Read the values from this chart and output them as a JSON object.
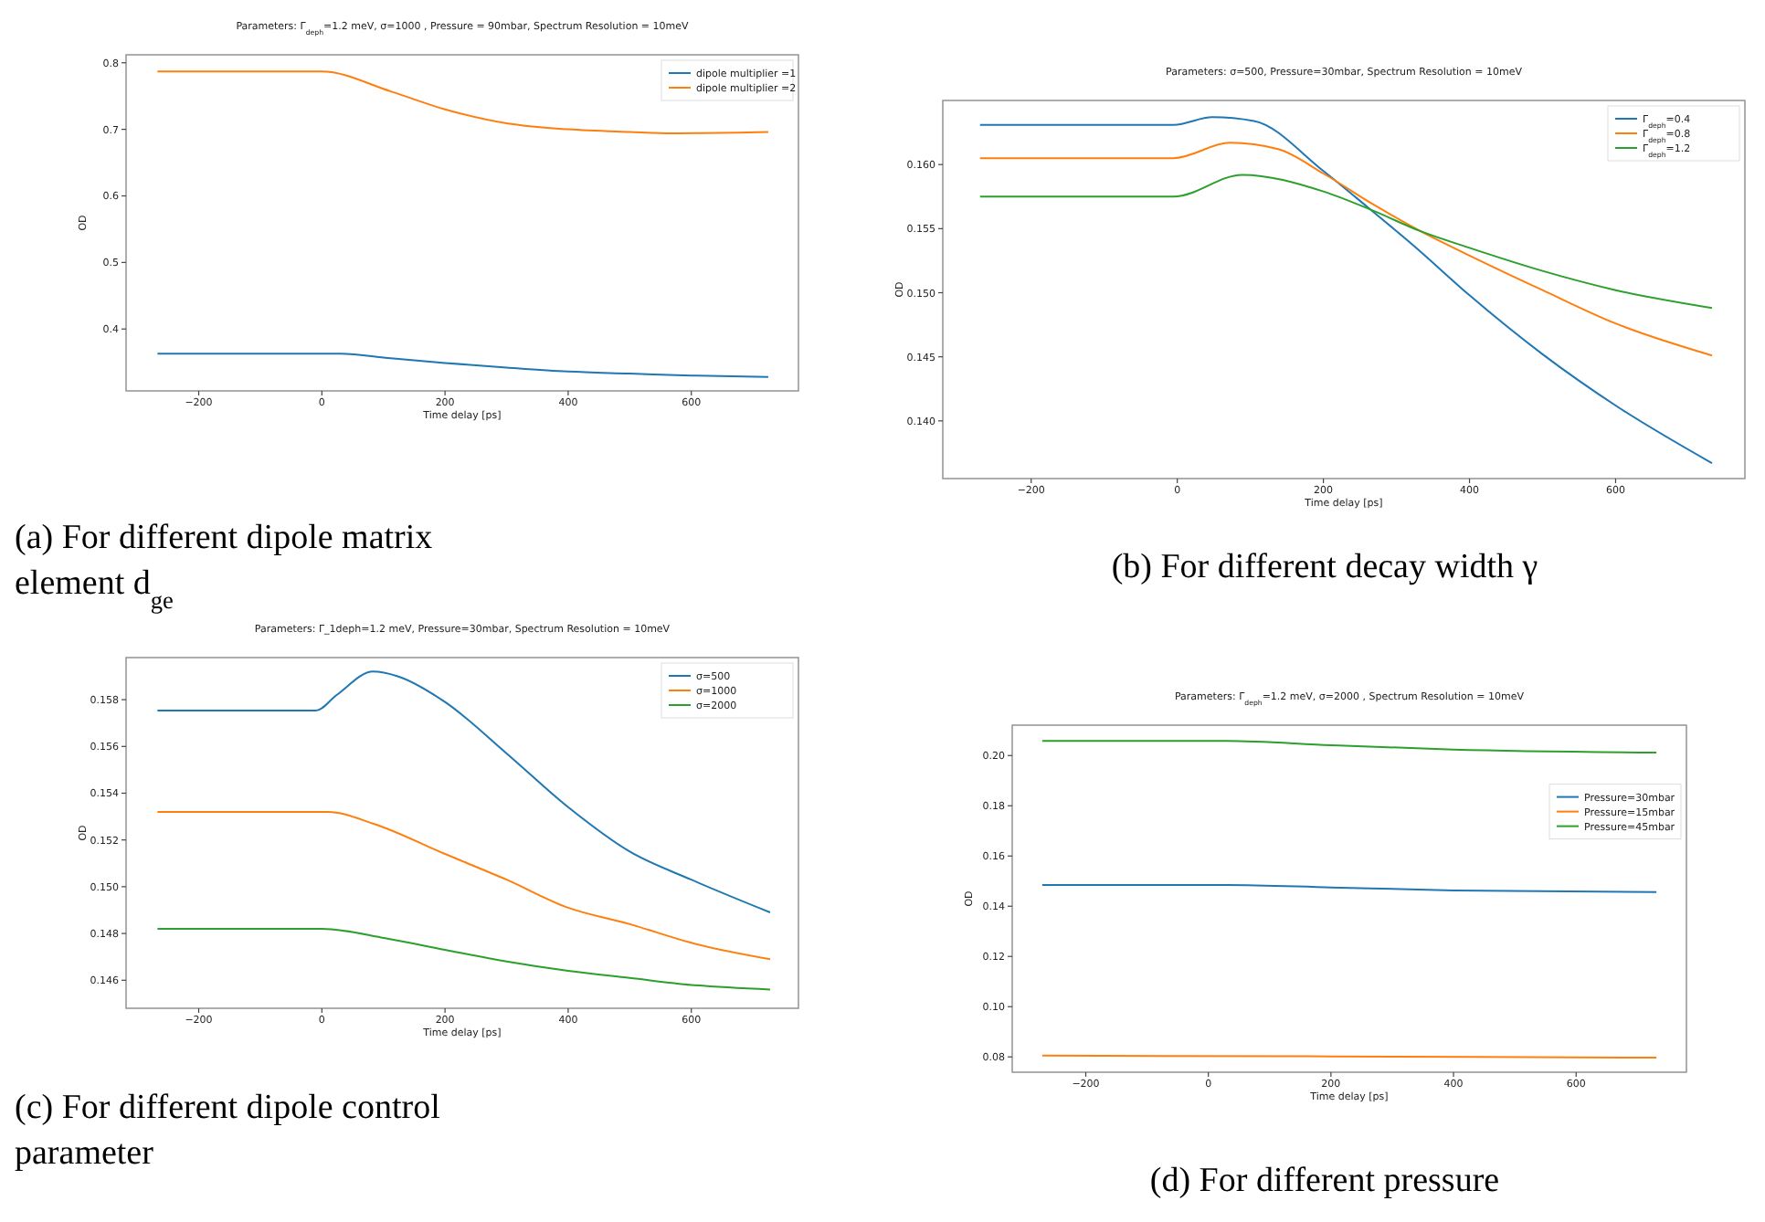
{
  "chart_data": [
    {
      "type": "line",
      "title": "Parameters: Γ$_{deph}$=1.2 meV, σ=1000 , Pressure = 90mbar, Spectrum Resolution = 10meV",
      "xlabel": "Time delay [ps]",
      "ylabel": "OD",
      "xlim": [
        -318,
        774
      ],
      "ylim": [
        0.307,
        0.812
      ],
      "xticks": [
        -200,
        0,
        200,
        400,
        600
      ],
      "yticks": [
        0.4,
        0.5,
        0.6,
        0.7,
        0.8
      ],
      "legend": "top right",
      "annotations": [
        "(a) For different dipole matrix element d$_{ge}$"
      ],
      "series": [
        {
          "name": "dipole multiplier =1",
          "color": "#1f77b4",
          "x": [
            -267,
            0,
            30,
            112,
            200,
            300,
            400,
            500,
            600,
            725
          ],
          "values": [
            0.363,
            0.363,
            0.363,
            0.356,
            0.349,
            0.342,
            0.336,
            0.333,
            0.33,
            0.328
          ]
        },
        {
          "name": "dipole multiplier =2",
          "color": "#ff7f0e",
          "x": [
            -267,
            0,
            112,
            200,
            300,
            400,
            500,
            570,
            725
          ],
          "values": [
            0.787,
            0.787,
            0.757,
            0.73,
            0.709,
            0.7,
            0.696,
            0.694,
            0.696
          ]
        }
      ]
    },
    {
      "type": "line",
      "title": "Parameters: σ=500, Pressure=30mbar, Spectrum Resolution = 10meV",
      "xlabel": "Time delay [ps]",
      "ylabel": "OD",
      "xlim": [
        -321,
        777
      ],
      "ylim": [
        0.1355,
        0.165
      ],
      "xticks": [
        -200,
        0,
        200,
        400,
        600
      ],
      "yticks": [
        {
          "value": 0.14,
          "label": "0.140"
        },
        0.145,
        {
          "value": 0.15,
          "label": "0.150"
        },
        0.155,
        {
          "value": 0.16,
          "label": "0.160"
        }
      ],
      "legend": "top right",
      "annotations": [
        "(b) For different decay width γ"
      ],
      "series": [
        {
          "name": "Γ$_{deph}$=0.4",
          "color": "#1f77b4",
          "x": [
            -270,
            -5,
            48,
            105,
            200,
            260,
            325,
            400,
            500,
            600,
            732
          ],
          "values": [
            0.1631,
            0.1631,
            0.1637,
            0.1634,
            0.1595,
            0.1567,
            0.1536,
            0.1498,
            0.1452,
            0.1412,
            0.1367
          ]
        },
        {
          "name": "Γ$_{deph}$=0.8",
          "color": "#ff7f0e",
          "x": [
            -270,
            -5,
            72,
            138,
            200,
            268,
            333,
            400,
            500,
            600,
            732
          ],
          "values": [
            0.1605,
            0.1605,
            0.1617,
            0.1612,
            0.1593,
            0.1569,
            0.1548,
            0.1529,
            0.1502,
            0.1476,
            0.1451
          ]
        },
        {
          "name": "Γ$_{deph}$=1.2",
          "color": "#2ca02c",
          "x": [
            -270,
            -5,
            89,
            200,
            268,
            333,
            400,
            500,
            600,
            732
          ],
          "values": [
            0.1575,
            0.1575,
            0.1592,
            0.1579,
            0.1564,
            0.1548,
            0.1535,
            0.1517,
            0.1502,
            0.1488
          ]
        }
      ]
    },
    {
      "type": "line",
      "title": "Parameters: Γ_1deph=1.2 meV, Pressure=30mbar, Spectrum Resolution = 10meV",
      "xlabel": "Time delay [ps]",
      "ylabel": "OD",
      "xlim": [
        -318,
        774
      ],
      "ylim": [
        0.1448,
        0.1598
      ],
      "xticks": [
        -200,
        0,
        200,
        400,
        600
      ],
      "yticks": [
        0.146,
        0.148,
        {
          "value": 0.15,
          "label": "0.150"
        },
        0.152,
        0.154,
        0.156,
        0.158
      ],
      "legend": "top right",
      "annotations": [
        "(c) For different dipole control parameter"
      ],
      "series": [
        {
          "name": "σ=500",
          "color": "#1f77b4",
          "x": [
            -267,
            -10,
            24,
            83,
            123,
            200,
            300,
            400,
            500,
            600,
            728
          ],
          "values": [
            0.15753,
            0.15753,
            0.1582,
            0.1592,
            0.159,
            0.1579,
            0.1557,
            0.1534,
            0.1515,
            0.1503,
            0.1489
          ]
        },
        {
          "name": "σ=1000",
          "color": "#ff7f0e",
          "x": [
            -267,
            10,
            83,
            200,
            300,
            400,
            500,
            600,
            728
          ],
          "values": [
            0.1532,
            0.1532,
            0.1527,
            0.1514,
            0.1503,
            0.1491,
            0.1484,
            0.1476,
            0.1469
          ]
        },
        {
          "name": "σ=2000",
          "color": "#2ca02c",
          "x": [
            -267,
            0,
            103,
            200,
            300,
            400,
            500,
            600,
            728
          ],
          "values": [
            0.1482,
            0.1482,
            0.1478,
            0.1473,
            0.1468,
            0.1464,
            0.1461,
            0.1458,
            0.1456
          ]
        }
      ]
    },
    {
      "type": "line",
      "title": "Parameters: Γ$_{deph}$=1.2 meV, σ=2000 , Spectrum Resolution = 10meV",
      "xlabel": "Time delay [ps]",
      "ylabel": "OD",
      "xlim": [
        -320,
        780
      ],
      "ylim": [
        0.0739,
        0.2121
      ],
      "xticks": [
        -200,
        0,
        200,
        400,
        600
      ],
      "yticks": [
        0.08,
        {
          "value": 0.1,
          "label": "0.10"
        },
        0.12,
        0.14,
        0.16,
        0.18,
        {
          "value": 0.2,
          "label": "0.20"
        }
      ],
      "legend": "right",
      "annotations": [
        "(d) For different pressure"
      ],
      "series": [
        {
          "name": "Pressure=30mbar",
          "color": "#1f77b4",
          "x": [
            -271,
            30,
            200,
            400,
            731
          ],
          "values": [
            0.1485,
            0.1485,
            0.1475,
            0.1463,
            0.1456
          ]
        },
        {
          "name": "Pressure=15mbar",
          "color": "#ff7f0e",
          "x": [
            -271,
            200,
            731
          ],
          "values": [
            0.0805,
            0.0802,
            0.0797
          ]
        },
        {
          "name": "Pressure=45mbar",
          "color": "#2ca02c",
          "x": [
            -271,
            30,
            200,
            400,
            731
          ],
          "values": [
            0.2058,
            0.2058,
            0.2041,
            0.2024,
            0.2012
          ]
        }
      ]
    }
  ]
}
